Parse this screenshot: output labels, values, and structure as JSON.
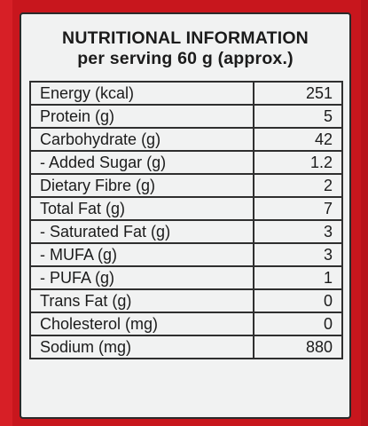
{
  "panel": {
    "title": "NUTRITIONAL INFORMATION",
    "subtitle": "per serving 60 g (approx.)"
  },
  "rows": [
    {
      "label": "Energy (kcal)",
      "value": "251"
    },
    {
      "label": "Protein (g)",
      "value": "5"
    },
    {
      "label": "Carbohydrate (g)",
      "value": "42"
    },
    {
      "label": "- Added Sugar (g)",
      "value": "1.2"
    },
    {
      "label": "Dietary Fibre (g)",
      "value": "2"
    },
    {
      "label": "Total Fat (g)",
      "value": "7"
    },
    {
      "label": "- Saturated Fat (g)",
      "value": "3"
    },
    {
      "label": "- MUFA (g)",
      "value": "3"
    },
    {
      "label": "- PUFA (g)",
      "value": "1"
    },
    {
      "label": "Trans Fat (g)",
      "value": "0"
    },
    {
      "label": "Cholesterol (mg)",
      "value": "0"
    },
    {
      "label": "Sodium (mg)",
      "value": "880"
    }
  ],
  "colors": {
    "background_red": "#c8161d",
    "panel": "#f1f2f2",
    "text": "#1b1b1b",
    "border": "#2f2f2f"
  }
}
